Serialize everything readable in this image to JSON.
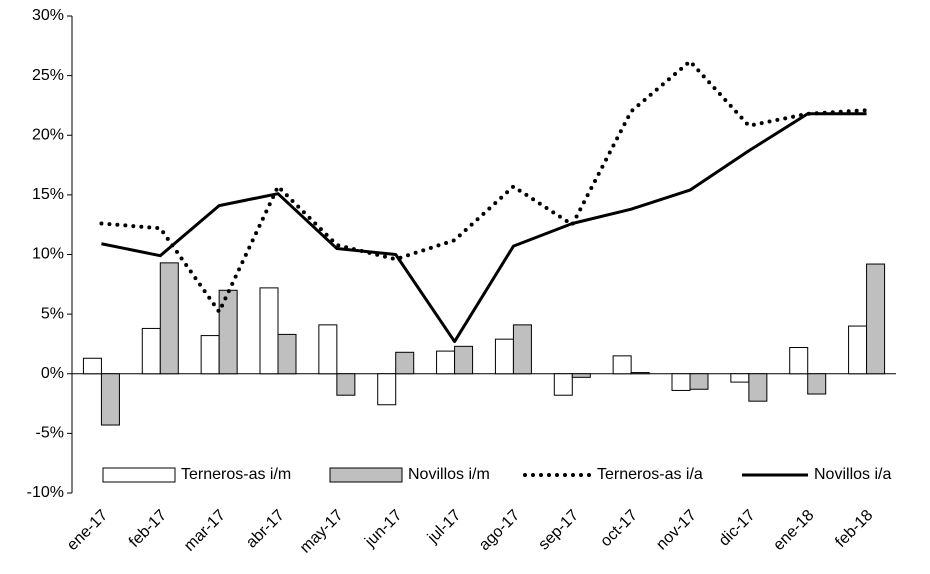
{
  "chart_data": {
    "type": "bar",
    "categories": [
      "ene-17",
      "feb-17",
      "mar-17",
      "abr-17",
      "may-17",
      "jun-17",
      "jul-17",
      "ago-17",
      "sep-17",
      "oct-17",
      "nov-17",
      "dic-17",
      "ene-18",
      "feb-18"
    ],
    "series": [
      {
        "name": "Terneros-as i/m",
        "type": "bar",
        "color": "#ffffff",
        "values": [
          1.3,
          3.8,
          3.2,
          7.2,
          4.1,
          -2.6,
          1.9,
          2.9,
          -1.8,
          1.5,
          -1.4,
          -0.7,
          2.2,
          4.0
        ]
      },
      {
        "name": "Novillos i/m",
        "type": "bar",
        "color": "#bfbfbf",
        "values": [
          -4.3,
          9.3,
          7.0,
          3.3,
          -1.8,
          1.8,
          2.3,
          4.1,
          -0.3,
          0.1,
          -1.3,
          -2.3,
          -1.7,
          9.2
        ]
      },
      {
        "name": "Terneros-as i/a",
        "type": "line",
        "style": "dotted",
        "color": "#000000",
        "values": [
          12.6,
          12.2,
          5.2,
          15.7,
          10.8,
          9.6,
          11.2,
          15.7,
          12.5,
          22.0,
          26.2,
          20.8,
          21.8,
          22.1
        ]
      },
      {
        "name": "Novillos i/a",
        "type": "line",
        "style": "solid",
        "color": "#000000",
        "values": [
          10.9,
          9.9,
          14.1,
          15.1,
          10.5,
          10.0,
          2.7,
          10.7,
          12.6,
          13.8,
          15.4,
          18.7,
          21.8,
          21.8
        ]
      }
    ],
    "ylim": [
      -10,
      30
    ],
    "yticks": [
      {
        "value": -10,
        "label": "-10%"
      },
      {
        "value": -5,
        "label": "-5%"
      },
      {
        "value": 0,
        "label": "0%"
      },
      {
        "value": 5,
        "label": "5%"
      },
      {
        "value": 10,
        "label": "10%"
      },
      {
        "value": 15,
        "label": "15%"
      },
      {
        "value": 20,
        "label": "20%"
      },
      {
        "value": 25,
        "label": "25%"
      },
      {
        "value": 30,
        "label": "30%"
      }
    ],
    "grid": false,
    "legend": "bottom"
  }
}
